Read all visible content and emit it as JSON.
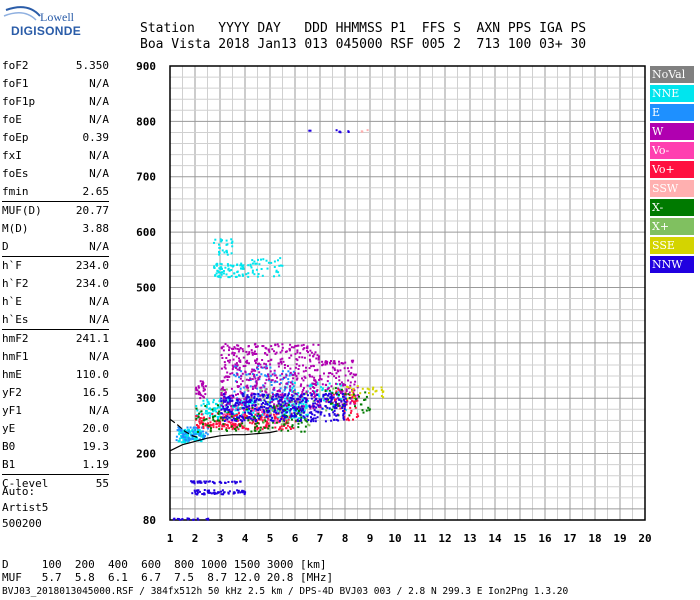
{
  "logo": {
    "top": "Lowell",
    "bottom": "DIGISONDE"
  },
  "header": {
    "line1": "Station   YYYY DAY   DDD HHMMSS P1  FFS S  AXN PPS IGA PS",
    "line2": "Boa Vista 2018 Jan13 013 045000 RSF 005 2  713 100 03+ 30"
  },
  "params": [
    {
      "name": "foF2",
      "value": "5.350"
    },
    {
      "name": "foF1",
      "value": "N/A"
    },
    {
      "name": "foF1p",
      "value": "N/A"
    },
    {
      "name": "foE",
      "value": "N/A"
    },
    {
      "name": "foEp",
      "value": "0.39"
    },
    {
      "name": "fxI",
      "value": "N/A"
    },
    {
      "name": "foEs",
      "value": "N/A"
    },
    {
      "name": "fmin",
      "value": "2.65"
    },
    {
      "name": "MUF(D)",
      "value": "20.77"
    },
    {
      "name": "M(D)",
      "value": "3.88"
    },
    {
      "name": "D",
      "value": "N/A"
    },
    {
      "name": "h`F",
      "value": "234.0"
    },
    {
      "name": "h`F2",
      "value": "234.0"
    },
    {
      "name": "h`E",
      "value": "N/A"
    },
    {
      "name": "h`Es",
      "value": "N/A"
    },
    {
      "name": "hmF2",
      "value": "241.1"
    },
    {
      "name": "hmF1",
      "value": "N/A"
    },
    {
      "name": "hmE",
      "value": "110.0"
    },
    {
      "name": "yF2",
      "value": "16.5"
    },
    {
      "name": "yF1",
      "value": "N/A"
    },
    {
      "name": "yE",
      "value": "20.0"
    },
    {
      "name": "B0",
      "value": "19.3"
    },
    {
      "name": "B1",
      "value": "1.19"
    },
    {
      "name": "C-level",
      "value": "55"
    }
  ],
  "auto": {
    "line1": "Auto:",
    "line2": "Artist5",
    "line3": "500200"
  },
  "footer": {
    "line1": "D     100  200  400  600  800 1000 1500 3000 [km]",
    "line2": "MUF   5.7  5.8  6.1  6.7  7.5  8.7 12.0 20.8 [MHz]",
    "line3": "BVJ03_2018013045000.RSF / 384fx512h 50 kHz 2.5 km / DPS-4D BVJ03 003 / 2.8 N 299.3 E Ion2Png 1.3.20"
  },
  "legend": [
    {
      "label": "NoVal",
      "color": "#808080"
    },
    {
      "label": "NNE",
      "color": "#00e5ee"
    },
    {
      "label": "E",
      "color": "#1e90ff"
    },
    {
      "label": "W",
      "color": "#b000b0"
    },
    {
      "label": "Vo-",
      "color": "#ff3fb0"
    },
    {
      "label": "Vo+",
      "color": "#ff1040"
    },
    {
      "label": "SSW",
      "color": "#ffb0b0"
    },
    {
      "label": "X-",
      "color": "#007a00"
    },
    {
      "label": "X+",
      "color": "#80c060"
    },
    {
      "label": "SSE",
      "color": "#d4d400"
    },
    {
      "label": "NNW",
      "color": "#2000e0"
    }
  ],
  "chart_data": {
    "type": "scatter",
    "title": "",
    "xlabel": "",
    "ylabel": "",
    "xlim": [
      1,
      20
    ],
    "ylim": [
      80,
      900
    ],
    "xticks": [
      "1",
      "2",
      "3",
      "4",
      "5",
      "6",
      "7",
      "8",
      "9",
      "10",
      "11",
      "12",
      "13",
      "14",
      "15",
      "16",
      "17",
      "18",
      "19",
      "20"
    ],
    "yticks": [
      "80",
      "200",
      "300",
      "400",
      "500",
      "600",
      "700",
      "800",
      "900"
    ],
    "grid": true,
    "legend_position": "right",
    "series": [
      {
        "name": "NNE",
        "clusters": [
          {
            "x": [
              1.3,
              2.3
            ],
            "y": [
              222,
              245
            ],
            "n": 150
          },
          {
            "x": [
              2.0,
              6.5
            ],
            "y": [
              265,
              300
            ],
            "n": 250
          },
          {
            "x": [
              2.7,
              3.9
            ],
            "y": [
              520,
              545
            ],
            "n": 70
          },
          {
            "x": [
              4.0,
              5.5
            ],
            "y": [
              520,
              555
            ],
            "n": 40
          },
          {
            "x": [
              2.7,
              3.5
            ],
            "y": [
              560,
              590
            ],
            "n": 25
          },
          {
            "x": [
              5.5,
              8.0
            ],
            "y": [
              280,
              330
            ],
            "n": 80
          }
        ]
      },
      {
        "name": "E",
        "clusters": [
          {
            "x": [
              1.2,
              2.5
            ],
            "y": [
              225,
              250
            ],
            "n": 60
          },
          {
            "x": [
              3.5,
              6.0
            ],
            "y": [
              300,
              360
            ],
            "n": 100
          }
        ]
      },
      {
        "name": "W",
        "clusters": [
          {
            "x": [
              2.0,
              2.4
            ],
            "y": [
              300,
              335
            ],
            "n": 30
          },
          {
            "x": [
              3.0,
              7.0
            ],
            "y": [
              280,
              400
            ],
            "n": 500
          },
          {
            "x": [
              7.0,
              8.5
            ],
            "y": [
              290,
              370
            ],
            "n": 120
          }
        ]
      },
      {
        "name": "Vo-",
        "clusters": [
          {
            "x": [
              3.0,
              5.5
            ],
            "y": [
              250,
              290
            ],
            "n": 80
          }
        ]
      },
      {
        "name": "Vo+",
        "clusters": [
          {
            "x": [
              2.0,
              6.0
            ],
            "y": [
              245,
              275
            ],
            "n": 200
          },
          {
            "x": [
              7.5,
              8.5
            ],
            "y": [
              260,
              320
            ],
            "n": 40
          }
        ]
      },
      {
        "name": "SSW",
        "clusters": [
          {
            "x": [
              8.5,
              8.9
            ],
            "y": [
              783,
              786
            ],
            "n": 3
          }
        ]
      },
      {
        "name": "X-",
        "clusters": [
          {
            "x": [
              2.0,
              6.5
            ],
            "y": [
              240,
              290
            ],
            "n": 120
          },
          {
            "x": [
              7.0,
              9.0
            ],
            "y": [
              270,
              320
            ],
            "n": 40
          }
        ]
      },
      {
        "name": "X+",
        "clusters": [
          {
            "x": [
              3.0,
              7.5
            ],
            "y": [
              250,
              320
            ],
            "n": 60
          }
        ]
      },
      {
        "name": "SSE",
        "clusters": [
          {
            "x": [
              8.0,
              9.5
            ],
            "y": [
              300,
              325
            ],
            "n": 25
          }
        ]
      },
      {
        "name": "NNW",
        "clusters": [
          {
            "x": [
              3.0,
              8.0
            ],
            "y": [
              260,
              310
            ],
            "n": 400
          },
          {
            "x": [
              6.5,
              6.6
            ],
            "y": [
              782,
              786
            ],
            "n": 2
          },
          {
            "x": [
              7.6,
              8.2
            ],
            "y": [
              782,
              786
            ],
            "n": 6
          },
          {
            "x": [
              1.8,
              4.0
            ],
            "y": [
              128,
              136
            ],
            "n": 60
          },
          {
            "x": [
              1.8,
              4.0
            ],
            "y": [
              148,
              152
            ],
            "n": 40
          },
          {
            "x": [
              1.1,
              2.5
            ],
            "y": [
              82,
              85
            ],
            "n": 20
          }
        ]
      }
    ],
    "virtual_height_trace": [
      [
        1.0,
        205
      ],
      [
        1.5,
        216
      ],
      [
        2.0,
        222
      ],
      [
        2.5,
        228
      ],
      [
        3.0,
        232
      ],
      [
        3.5,
        234
      ],
      [
        4.0,
        234
      ],
      [
        4.5,
        236
      ],
      [
        5.0,
        238
      ],
      [
        5.3,
        241
      ]
    ],
    "extraordinary_trace": [
      [
        1.0,
        262
      ],
      [
        1.3,
        252
      ],
      [
        1.6,
        240
      ],
      [
        1.9,
        232
      ],
      [
        2.2,
        228
      ]
    ]
  }
}
